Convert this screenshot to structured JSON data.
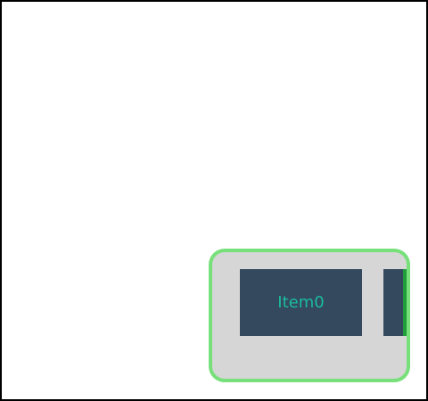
{
  "container": {
    "items": [
      {
        "label": "Item0"
      },
      {
        "label": ""
      }
    ]
  },
  "colors": {
    "frame_border": "#000000",
    "container_bg": "#d6d6d6",
    "container_border": "#77e07a",
    "item_bg": "#34495e",
    "item_text": "#1abc9c",
    "edge_marker": "#1f9e3a"
  }
}
